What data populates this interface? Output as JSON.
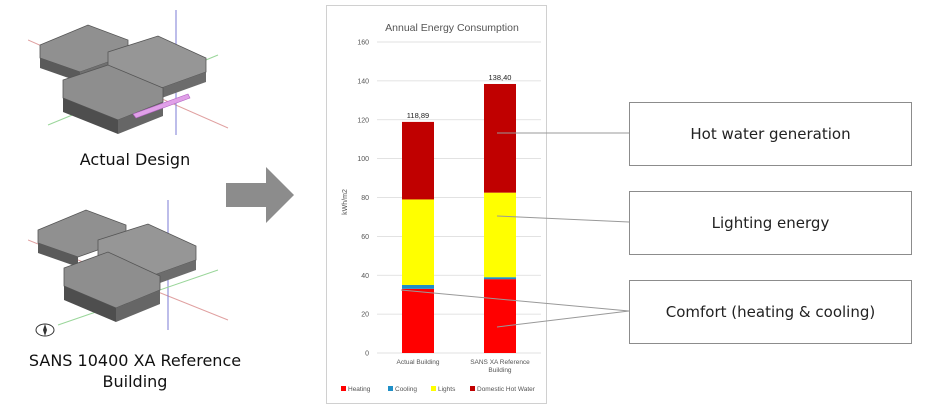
{
  "left_panel": {
    "model_top_caption": "Actual Design",
    "model_bottom_caption_line1": "SANS 10400 XA Reference",
    "model_bottom_caption_line2": "Building"
  },
  "colors": {
    "roof": "#8a8a8a",
    "wall": "#5e5e5e",
    "heating": "#ff0000",
    "cooling": "#1f8fc7",
    "lights": "#ffff00",
    "dhw": "#c00000"
  },
  "callouts": [
    {
      "label": "Hot water generation"
    },
    {
      "label": "Lighting energy"
    },
    {
      "label": "Comfort (heating & cooling)"
    }
  ],
  "chart_data": {
    "type": "bar",
    "stacked": true,
    "title": "Annual Energy Consumption",
    "ylabel": "kWh/m2",
    "ylim": [
      0,
      160
    ],
    "yticks": [
      0,
      20,
      40,
      60,
      80,
      100,
      120,
      140,
      160
    ],
    "categories": [
      "Actual Building",
      "SANS XA Reference Building"
    ],
    "series": [
      {
        "name": "Heating",
        "color": "#ff0000",
        "values": [
          33.0,
          38.0
        ]
      },
      {
        "name": "Cooling",
        "color": "#1f8fc7",
        "values": [
          2.0,
          1.0
        ]
      },
      {
        "name": "Lights",
        "color": "#ffff00",
        "values": [
          44.0,
          43.5
        ]
      },
      {
        "name": "Domestic Hot Water",
        "color": "#c00000",
        "values": [
          39.89,
          55.9
        ]
      }
    ],
    "totals": [
      "118,89",
      "138,40"
    ],
    "legend": "bottom"
  }
}
